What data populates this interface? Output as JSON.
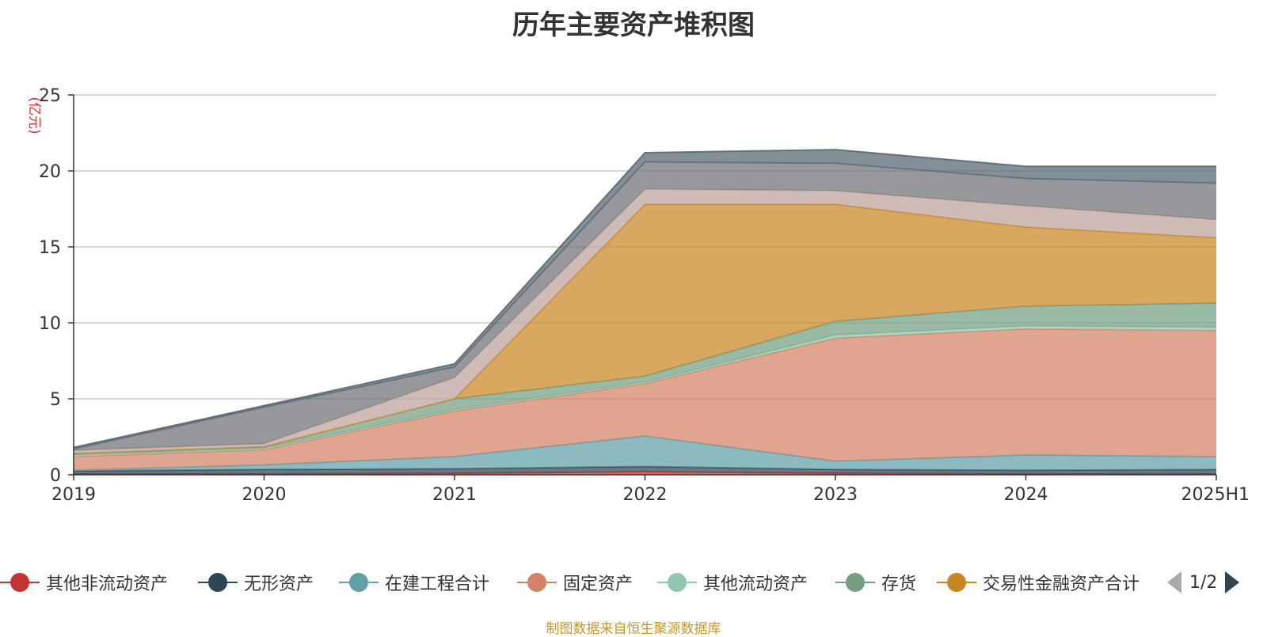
{
  "chart_data": {
    "type": "area",
    "stacked": true,
    "title": "历年主要资产堆积图",
    "unit_label": "(亿元)",
    "x": [
      "2019",
      "2020",
      "2021",
      "2022",
      "2023",
      "2024",
      "2025H1"
    ],
    "ylim": [
      0,
      25
    ],
    "yticks": [
      0,
      5,
      10,
      15,
      20,
      25
    ],
    "grid": true,
    "legend_position": "bottom",
    "series": [
      {
        "name": "其他非流动资产",
        "color": "#c23531",
        "values": [
          0.05,
          0.05,
          0.1,
          0.2,
          0.1,
          0.05,
          0.05
        ]
      },
      {
        "name": "无形资产",
        "color": "#2f4554",
        "values": [
          0.2,
          0.3,
          0.3,
          0.35,
          0.25,
          0.25,
          0.3
        ]
      },
      {
        "name": "在建工程合计",
        "color": "#61a0a8",
        "values": [
          0.05,
          0.3,
          0.8,
          2.0,
          0.55,
          1.0,
          0.85
        ]
      },
      {
        "name": "固定资产",
        "color": "#d48265",
        "values": [
          0.9,
          1.0,
          3.0,
          3.45,
          8.1,
          8.3,
          8.3
        ]
      },
      {
        "name": "其他流动资产",
        "color": "#91c7ae",
        "values": [
          0.1,
          0.1,
          0.1,
          0.1,
          0.2,
          0.2,
          0.2
        ]
      },
      {
        "name": "存货",
        "color": "#749f83",
        "values": [
          0.1,
          0.1,
          0.7,
          0.4,
          0.9,
          1.3,
          1.6
        ]
      },
      {
        "name": "交易性金融资产合计",
        "color": "#ca8622",
        "values": [
          0,
          0,
          0,
          11.3,
          7.7,
          5.2,
          4.3
        ]
      },
      {
        "name": "",
        "color": "#bda29a",
        "values": [
          0.2,
          0.2,
          1.4,
          1.0,
          0.9,
          1.4,
          1.2
        ]
      },
      {
        "name": "",
        "color": "#6e7074",
        "values": [
          0.1,
          2.4,
          0.7,
          1.8,
          1.8,
          1.8,
          2.4
        ]
      },
      {
        "name": "",
        "color": "#546570",
        "values": [
          0.1,
          0.1,
          0.2,
          0.6,
          0.9,
          0.8,
          1.1
        ]
      }
    ]
  },
  "legend": {
    "visible_count": 7,
    "page": "1/2"
  },
  "footer": {
    "source": "制图数据来自恒生聚源数据库"
  }
}
